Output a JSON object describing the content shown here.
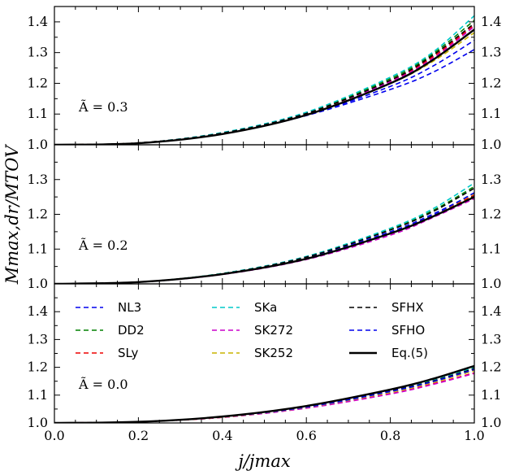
{
  "chart_data": {
    "type": "line",
    "xlabel": "j/jmax",
    "ylabel": "Mmax,dr/MTOV",
    "xlim": [
      0.0,
      1.0
    ],
    "x_ticks": [
      "0.0",
      "0.2",
      "0.4",
      "0.6",
      "0.8",
      "1.0"
    ],
    "grid": false,
    "legend_placement": "bottom panel, upper area, three columns",
    "series_meta": [
      {
        "name": "NL3",
        "color": "#0000ee",
        "dashed": true
      },
      {
        "name": "DD2",
        "color": "#008000",
        "dashed": true
      },
      {
        "name": "SLy",
        "color": "#ee0000",
        "dashed": true
      },
      {
        "name": "SKa",
        "color": "#00c8c8",
        "dashed": true
      },
      {
        "name": "SK272",
        "color": "#cc00cc",
        "dashed": true
      },
      {
        "name": "SK252",
        "color": "#c8b400",
        "dashed": true
      },
      {
        "name": "SFHX",
        "color": "#000000",
        "dashed": true
      },
      {
        "name": "SFHO",
        "color": "#0000ee",
        "dashed": true
      },
      {
        "name": "Eq.(5)",
        "color": "#000000",
        "dashed": false
      }
    ],
    "panels": [
      {
        "annotation": "Ã = 0.3",
        "ylim": [
          1.0,
          1.45
        ],
        "y_ticks": [
          "1.0",
          "1.1",
          "1.2",
          "1.3",
          "1.4"
        ],
        "x": [
          0.0,
          0.2,
          0.4,
          0.6,
          0.8,
          0.9,
          1.0
        ],
        "series": [
          {
            "name": "NL3",
            "values": [
              1.0,
              1.005,
              1.035,
              1.095,
              1.18,
              1.235,
              1.31
            ]
          },
          {
            "name": "DD2",
            "values": [
              1.0,
              1.006,
              1.039,
              1.104,
              1.215,
              1.295,
              1.405
            ]
          },
          {
            "name": "SLy",
            "values": [
              1.0,
              1.006,
              1.038,
              1.102,
              1.208,
              1.285,
              1.39
            ]
          },
          {
            "name": "SKa",
            "values": [
              1.0,
              1.006,
              1.04,
              1.106,
              1.22,
              1.3,
              1.42
            ]
          },
          {
            "name": "SK272",
            "values": [
              1.0,
              1.006,
              1.037,
              1.1,
              1.205,
              1.28,
              1.385
            ]
          },
          {
            "name": "SK252",
            "values": [
              1.0,
              1.006,
              1.036,
              1.099,
              1.2,
              1.27,
              1.365
            ]
          },
          {
            "name": "SFHX",
            "values": [
              1.0,
              1.006,
              1.038,
              1.102,
              1.21,
              1.29,
              1.395
            ]
          },
          {
            "name": "SFHO",
            "values": [
              1.0,
              1.005,
              1.035,
              1.096,
              1.19,
              1.255,
              1.34
            ]
          },
          {
            "name": "Eq.(5)",
            "values": [
              1.0,
              1.005,
              1.035,
              1.097,
              1.2,
              1.275,
              1.375
            ]
          }
        ]
      },
      {
        "annotation": "Ã = 0.2",
        "ylim": [
          1.0,
          1.4
        ],
        "y_ticks": [
          "1.0",
          "1.1",
          "1.2",
          "1.3"
        ],
        "x": [
          0.0,
          0.2,
          0.4,
          0.6,
          0.8,
          0.9,
          1.0
        ],
        "series": [
          {
            "name": "NL3",
            "values": [
              1.0,
              1.005,
              1.028,
              1.075,
              1.15,
              1.2,
              1.26
            ]
          },
          {
            "name": "DD2",
            "values": [
              1.0,
              1.005,
              1.03,
              1.078,
              1.157,
              1.21,
              1.28
            ]
          },
          {
            "name": "SLy",
            "values": [
              1.0,
              1.005,
              1.028,
              1.072,
              1.145,
              1.195,
              1.255
            ]
          },
          {
            "name": "SKa",
            "values": [
              1.0,
              1.005,
              1.03,
              1.079,
              1.16,
              1.215,
              1.29
            ]
          },
          {
            "name": "SK272",
            "values": [
              1.0,
              1.005,
              1.027,
              1.07,
              1.14,
              1.19,
              1.245
            ]
          },
          {
            "name": "SK252",
            "values": [
              1.0,
              1.005,
              1.028,
              1.073,
              1.147,
              1.197,
              1.26
            ]
          },
          {
            "name": "SFHX",
            "values": [
              1.0,
              1.005,
              1.029,
              1.077,
              1.155,
              1.207,
              1.275
            ]
          },
          {
            "name": "SFHO",
            "values": [
              1.0,
              1.005,
              1.028,
              1.073,
              1.147,
              1.197,
              1.262
            ]
          },
          {
            "name": "Eq.(5)",
            "values": [
              1.0,
              1.005,
              1.028,
              1.072,
              1.145,
              1.193,
              1.25
            ]
          }
        ]
      },
      {
        "annotation": "Ã = 0.0",
        "ylim": [
          1.0,
          1.5
        ],
        "y_ticks": [
          "1.0",
          "1.1",
          "1.2",
          "1.3",
          "1.4"
        ],
        "x": [
          0.0,
          0.2,
          0.4,
          0.6,
          0.8,
          0.9,
          1.0
        ],
        "series": [
          {
            "name": "NL3",
            "values": [
              1.0,
              1.004,
              1.022,
              1.058,
              1.115,
              1.15,
              1.195
            ]
          },
          {
            "name": "DD2",
            "values": [
              1.0,
              1.004,
              1.022,
              1.058,
              1.115,
              1.15,
              1.195
            ]
          },
          {
            "name": "SLy",
            "values": [
              1.0,
              1.004,
              1.02,
              1.054,
              1.105,
              1.14,
              1.18
            ]
          },
          {
            "name": "SKa",
            "values": [
              1.0,
              1.004,
              1.023,
              1.06,
              1.118,
              1.155,
              1.2
            ]
          },
          {
            "name": "SK272",
            "values": [
              1.0,
              1.004,
              1.02,
              1.053,
              1.104,
              1.138,
              1.178
            ]
          },
          {
            "name": "SK252",
            "values": [
              1.0,
              1.004,
              1.021,
              1.056,
              1.11,
              1.145,
              1.188
            ]
          },
          {
            "name": "SFHX",
            "values": [
              1.0,
              1.004,
              1.022,
              1.058,
              1.115,
              1.15,
              1.195
            ]
          },
          {
            "name": "SFHO",
            "values": [
              1.0,
              1.004,
              1.022,
              1.057,
              1.113,
              1.148,
              1.192
            ]
          },
          {
            "name": "Eq.(5)",
            "values": [
              1.0,
              1.004,
              1.023,
              1.061,
              1.12,
              1.158,
              1.205
            ]
          }
        ]
      }
    ]
  }
}
